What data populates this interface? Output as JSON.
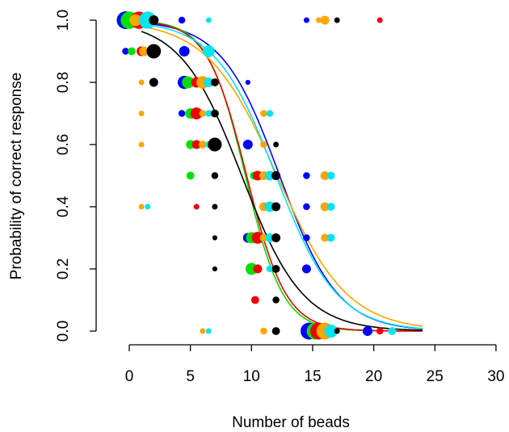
{
  "chart_data": {
    "type": "scatter",
    "title": "",
    "xlabel": "Number of beads",
    "ylabel": "Probability of correct response",
    "xlim": [
      0,
      30
    ],
    "ylim": [
      0,
      1
    ],
    "xticks": [
      0,
      5,
      10,
      15,
      20,
      25,
      30
    ],
    "yticks": [
      0.0,
      0.2,
      0.4,
      0.6,
      0.8,
      1.0
    ],
    "xtick_labels": [
      "0",
      "5",
      "10",
      "15",
      "20",
      "25",
      "30"
    ],
    "ytick_labels": [
      "0.0",
      "0.2",
      "0.4",
      "0.6",
      "0.8",
      "1.0"
    ],
    "grid": false,
    "legend": "none",
    "series": [
      {
        "color": "#0000ff",
        "curve": {
          "midpoint": 12.3,
          "slope": 0.42,
          "x_range": [
            1,
            24
          ]
        },
        "points": [
          {
            "x": -0.3,
            "y": 1.0,
            "size": 1.0
          },
          {
            "x": 4.3,
            "y": 1.0,
            "size": 0.15
          },
          {
            "x": 14.5,
            "y": 1.0,
            "size": 0.1
          },
          {
            "x": -0.3,
            "y": 0.9,
            "size": 0.15
          },
          {
            "x": 4.5,
            "y": 0.9,
            "size": 0.35
          },
          {
            "x": 4.5,
            "y": 0.8,
            "size": 0.55
          },
          {
            "x": 9.7,
            "y": 0.8,
            "size": 0.08
          },
          {
            "x": 4.3,
            "y": 0.7,
            "size": 0.15
          },
          {
            "x": 9.7,
            "y": 0.6,
            "size": 0.3
          },
          {
            "x": 14.5,
            "y": 0.5,
            "size": 0.15
          },
          {
            "x": 14.5,
            "y": 0.4,
            "size": 0.15
          },
          {
            "x": 9.7,
            "y": 0.3,
            "size": 0.3
          },
          {
            "x": 14.5,
            "y": 0.3,
            "size": 0.15
          },
          {
            "x": 14.5,
            "y": 0.2,
            "size": 0.25
          },
          {
            "x": 14.7,
            "y": 0.0,
            "size": 0.9
          },
          {
            "x": 19.5,
            "y": 0.0,
            "size": 0.3
          }
        ]
      },
      {
        "color": "#00e000",
        "curve": {
          "midpoint": 9.5,
          "slope": 0.65,
          "x_range": [
            2,
            24
          ]
        },
        "points": [
          {
            "x": 0.0,
            "y": 1.0,
            "size": 0.95
          },
          {
            "x": 0.2,
            "y": 0.9,
            "size": 0.2
          },
          {
            "x": 4.8,
            "y": 0.8,
            "size": 0.45
          },
          {
            "x": 5.0,
            "y": 0.7,
            "size": 0.35
          },
          {
            "x": 5.0,
            "y": 0.6,
            "size": 0.25
          },
          {
            "x": 5.0,
            "y": 0.5,
            "size": 0.2
          },
          {
            "x": 10.2,
            "y": 0.5,
            "size": 0.2
          },
          {
            "x": 10.0,
            "y": 0.3,
            "size": 0.4
          },
          {
            "x": 10.0,
            "y": 0.2,
            "size": 0.45
          },
          {
            "x": 15.2,
            "y": 0.0,
            "size": 0.9
          }
        ]
      },
      {
        "color": "#ee0000",
        "curve": {
          "midpoint": 9.6,
          "slope": 0.62,
          "x_range": [
            2,
            24
          ]
        },
        "points": [
          {
            "x": 0.8,
            "y": 1.0,
            "size": 0.95
          },
          {
            "x": 1.0,
            "y": 0.9,
            "size": 0.3
          },
          {
            "x": 5.5,
            "y": 0.8,
            "size": 0.35
          },
          {
            "x": 5.5,
            "y": 0.7,
            "size": 0.45
          },
          {
            "x": 5.5,
            "y": 0.6,
            "size": 0.25
          },
          {
            "x": 10.5,
            "y": 0.5,
            "size": 0.3
          },
          {
            "x": 10.5,
            "y": 0.3,
            "size": 0.45
          },
          {
            "x": 10.5,
            "y": 0.2,
            "size": 0.25
          },
          {
            "x": 10.3,
            "y": 0.1,
            "size": 0.2
          },
          {
            "x": 15.5,
            "y": 0.0,
            "size": 0.9
          },
          {
            "x": 20.5,
            "y": 1.0,
            "size": 0.1
          },
          {
            "x": 20.5,
            "y": 0.0,
            "size": 0.15
          },
          {
            "x": 5.5,
            "y": 0.4,
            "size": 0.1
          }
        ]
      },
      {
        "color": "#ffa500",
        "curve": {
          "midpoint": 12.1,
          "slope": 0.35,
          "x_range": [
            1,
            24
          ]
        },
        "points": [
          {
            "x": 0.5,
            "y": 1.0,
            "size": 0.45
          },
          {
            "x": 1.2,
            "y": 0.9,
            "size": 0.3
          },
          {
            "x": 1.0,
            "y": 0.8,
            "size": 0.1
          },
          {
            "x": 6.0,
            "y": 0.8,
            "size": 0.5
          },
          {
            "x": 1.0,
            "y": 0.7,
            "size": 0.1
          },
          {
            "x": 6.0,
            "y": 0.7,
            "size": 0.15
          },
          {
            "x": 1.0,
            "y": 0.6,
            "size": 0.1
          },
          {
            "x": 6.0,
            "y": 0.6,
            "size": 0.2
          },
          {
            "x": 11.0,
            "y": 0.7,
            "size": 0.15
          },
          {
            "x": 11.0,
            "y": 0.6,
            "size": 0.15
          },
          {
            "x": 11.0,
            "y": 0.5,
            "size": 0.25
          },
          {
            "x": 11.0,
            "y": 0.4,
            "size": 0.25
          },
          {
            "x": 11.0,
            "y": 0.3,
            "size": 0.2
          },
          {
            "x": 16.0,
            "y": 1.0,
            "size": 0.25
          },
          {
            "x": 16.0,
            "y": 0.5,
            "size": 0.25
          },
          {
            "x": 16.0,
            "y": 0.4,
            "size": 0.25
          },
          {
            "x": 16.0,
            "y": 0.3,
            "size": 0.2
          },
          {
            "x": 16.0,
            "y": 0.0,
            "size": 0.9
          },
          {
            "x": 11.0,
            "y": 0.0,
            "size": 0.15
          },
          {
            "x": 6.0,
            "y": 0.0,
            "size": 0.1
          },
          {
            "x": 1.0,
            "y": 0.4,
            "size": 0.1
          },
          {
            "x": 15.5,
            "y": 1.0,
            "size": 0.1
          }
        ]
      },
      {
        "color": "#00e5ee",
        "curve": {
          "midpoint": 12.0,
          "slope": 0.4,
          "x_range": [
            1,
            24
          ]
        },
        "points": [
          {
            "x": 1.5,
            "y": 1.0,
            "size": 0.95
          },
          {
            "x": 6.5,
            "y": 1.0,
            "size": 0.1
          },
          {
            "x": 6.5,
            "y": 0.9,
            "size": 0.45
          },
          {
            "x": 6.5,
            "y": 0.8,
            "size": 0.3
          },
          {
            "x": 6.5,
            "y": 0.7,
            "size": 0.15
          },
          {
            "x": 6.5,
            "y": 0.6,
            "size": 0.15
          },
          {
            "x": 11.5,
            "y": 0.7,
            "size": 0.15
          },
          {
            "x": 11.5,
            "y": 0.5,
            "size": 0.3
          },
          {
            "x": 11.5,
            "y": 0.4,
            "size": 0.35
          },
          {
            "x": 11.5,
            "y": 0.3,
            "size": 0.25
          },
          {
            "x": 11.5,
            "y": 0.2,
            "size": 0.15
          },
          {
            "x": 16.5,
            "y": 0.5,
            "size": 0.2
          },
          {
            "x": 16.5,
            "y": 0.4,
            "size": 0.2
          },
          {
            "x": 16.5,
            "y": 0.3,
            "size": 0.2
          },
          {
            "x": 16.5,
            "y": 0.0,
            "size": 0.55
          },
          {
            "x": 21.5,
            "y": 0.0,
            "size": 0.2
          },
          {
            "x": 6.5,
            "y": 0.0,
            "size": 0.1
          },
          {
            "x": 1.5,
            "y": 0.4,
            "size": 0.1
          }
        ]
      },
      {
        "color": "#000000",
        "curve": {
          "midpoint": 9.2,
          "slope": 0.4,
          "x_range": [
            1,
            24
          ]
        },
        "points": [
          {
            "x": 2.0,
            "y": 1.0,
            "size": 0.3
          },
          {
            "x": 2.0,
            "y": 0.9,
            "size": 0.65
          },
          {
            "x": 2.0,
            "y": 0.8,
            "size": 0.25
          },
          {
            "x": 7.0,
            "y": 0.8,
            "size": 0.2
          },
          {
            "x": 7.0,
            "y": 0.7,
            "size": 0.2
          },
          {
            "x": 7.0,
            "y": 0.6,
            "size": 0.6
          },
          {
            "x": 7.0,
            "y": 0.5,
            "size": 0.15
          },
          {
            "x": 7.0,
            "y": 0.4,
            "size": 0.1
          },
          {
            "x": 7.0,
            "y": 0.3,
            "size": 0.08
          },
          {
            "x": 7.0,
            "y": 0.2,
            "size": 0.08
          },
          {
            "x": 12.0,
            "y": 0.5,
            "size": 0.25
          },
          {
            "x": 12.0,
            "y": 0.4,
            "size": 0.25
          },
          {
            "x": 12.0,
            "y": 0.3,
            "size": 0.25
          },
          {
            "x": 12.0,
            "y": 0.2,
            "size": 0.2
          },
          {
            "x": 12.0,
            "y": 0.1,
            "size": 0.15
          },
          {
            "x": 12.0,
            "y": 0.0,
            "size": 0.2
          },
          {
            "x": 17.0,
            "y": 1.0,
            "size": 0.1
          },
          {
            "x": 17.0,
            "y": 0.0,
            "size": 0.1
          },
          {
            "x": 12.0,
            "y": 0.6,
            "size": 0.1
          }
        ]
      }
    ]
  }
}
